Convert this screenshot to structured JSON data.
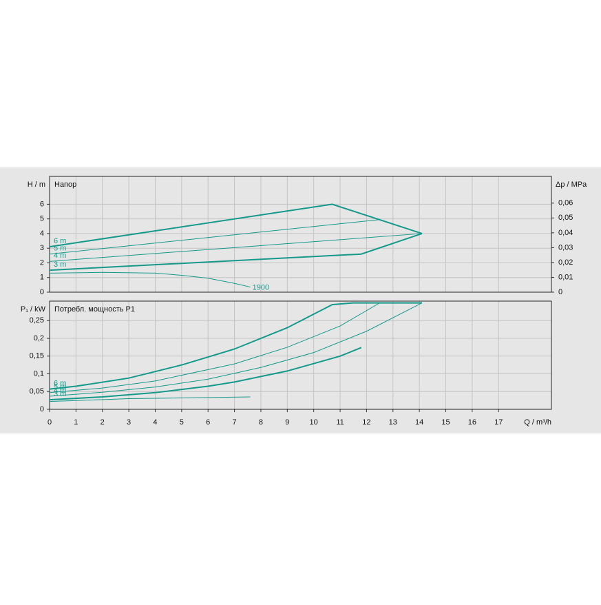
{
  "chart_data": [
    {
      "type": "line",
      "title": "Напор",
      "ylabel": "H / m",
      "y2label": "Δp / MPa",
      "xlim": [
        0,
        19
      ],
      "xticks": [
        0,
        1,
        2,
        3,
        4,
        5,
        6,
        7,
        8,
        9,
        10,
        11,
        12,
        13,
        14,
        15,
        16,
        17
      ],
      "ylim": [
        0,
        7.9
      ],
      "yticks": [
        0,
        1,
        2,
        3,
        4,
        5,
        6
      ],
      "y2lim": [
        0,
        0.078
      ],
      "y2ticks": [
        0,
        {
          "value": 0.01,
          "label": "0,01"
        },
        {
          "value": 0.02,
          "label": "0,02"
        },
        {
          "value": 0.03,
          "label": "0,03"
        },
        {
          "value": 0.04,
          "label": "0,04"
        },
        {
          "value": 0.05,
          "label": "0,05"
        },
        {
          "value": 0.06,
          "label": "0,06"
        }
      ],
      "grid": true,
      "series": [
        {
          "name": "6 m",
          "color": "#14998a",
          "line_width": 2,
          "label_position": "start",
          "x": [
            0,
            10.7,
            14.1
          ],
          "values": [
            3.1,
            6.0,
            4.0
          ]
        },
        {
          "name": "5 m",
          "color": "#14998a",
          "line_width": 1,
          "label_position": "start",
          "x": [
            0,
            12.5
          ],
          "values": [
            2.6,
            4.95
          ]
        },
        {
          "name": "4 m",
          "color": "#14998a",
          "line_width": 1,
          "label_position": "start",
          "x": [
            0,
            14.1
          ],
          "values": [
            2.1,
            4.0
          ]
        },
        {
          "name": "3 m",
          "color": "#14998a",
          "line_width": 2,
          "label_position": "start",
          "x": [
            0,
            11.8,
            14.1
          ],
          "values": [
            1.5,
            2.6,
            4.0
          ]
        },
        {
          "name": "1900",
          "color": "#14998a",
          "line_width": 1,
          "label_position": "end",
          "x": [
            0,
            2,
            4,
            5,
            6,
            7,
            7.6
          ],
          "values": [
            1.3,
            1.35,
            1.3,
            1.15,
            0.95,
            0.6,
            0.35
          ]
        }
      ]
    },
    {
      "type": "line",
      "title": "Потребл. мощность P1",
      "ylabel": "P₁ / kW",
      "xlabel": "Q / m³/h",
      "xlim": [
        0,
        19
      ],
      "xticks": [
        0,
        1,
        2,
        3,
        4,
        5,
        6,
        7,
        8,
        9,
        10,
        11,
        12,
        13,
        14,
        15,
        16,
        17
      ],
      "ylim": [
        0,
        0.305
      ],
      "yticks": [
        0,
        {
          "value": 0.05,
          "label": "0,05"
        },
        {
          "value": 0.1,
          "label": "0,1"
        },
        {
          "value": 0.15,
          "label": "0,15"
        },
        {
          "value": 0.2,
          "label": "0,2"
        },
        {
          "value": 0.25,
          "label": "0,25"
        }
      ],
      "grid": true,
      "series": [
        {
          "name": "6 m",
          "color": "#14998a",
          "line_width": 2,
          "label_position": "start",
          "x": [
            0,
            1,
            3,
            5,
            7,
            9,
            10.7,
            11.5,
            14.1
          ],
          "values": [
            0.057,
            0.065,
            0.088,
            0.125,
            0.17,
            0.23,
            0.295,
            0.3,
            0.3
          ]
        },
        {
          "name": "5 m",
          "color": "#14998a",
          "line_width": 1,
          "label_position": "start",
          "x": [
            0,
            2,
            4,
            7,
            9,
            11,
            12.5,
            14.1
          ],
          "values": [
            0.047,
            0.06,
            0.08,
            0.128,
            0.175,
            0.235,
            0.3,
            0.3
          ]
        },
        {
          "name": "4 m",
          "color": "#14998a",
          "line_width": 1,
          "label_position": "start",
          "x": [
            0,
            2,
            4,
            6,
            8,
            10,
            12,
            14.1
          ],
          "values": [
            0.037,
            0.048,
            0.063,
            0.085,
            0.118,
            0.16,
            0.22,
            0.3
          ]
        },
        {
          "name": "3 m",
          "color": "#14998a",
          "line_width": 2,
          "label_position": "start",
          "x": [
            0,
            2,
            4,
            6,
            7,
            9,
            11,
            11.8
          ],
          "values": [
            0.027,
            0.035,
            0.047,
            0.065,
            0.077,
            0.108,
            0.15,
            0.174
          ]
        },
        {
          "name": "1900",
          "color": "#14998a",
          "line_width": 1,
          "label_position": "none",
          "x": [
            0,
            3,
            7.6
          ],
          "values": [
            0.022,
            0.03,
            0.035
          ]
        }
      ]
    }
  ]
}
